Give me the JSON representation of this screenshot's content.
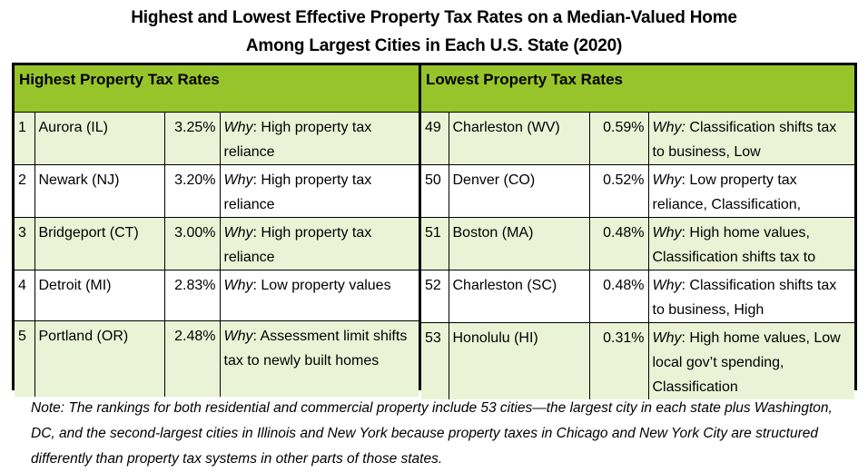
{
  "title": {
    "line1": "Highest and Lowest Effective Property Tax Rates on a Median-Valued Home",
    "line2": "Among Largest Cities in Each U.S. State (2020)"
  },
  "colors": {
    "header_green": "#97c42a",
    "row_tint": "#ebf3d6"
  },
  "highest": {
    "heading": "Highest Property Tax Rates",
    "rows": [
      {
        "rank": "1",
        "city": "Aurora (IL)",
        "rate": "3.25%",
        "why_label": "Why",
        "reason": ": High property tax reliance"
      },
      {
        "rank": "2",
        "city": "Newark (NJ)",
        "rate": "3.20%",
        "why_label": "Why",
        "reason": ": High property tax reliance"
      },
      {
        "rank": "3",
        "city": "Bridgeport (CT)",
        "rate": "3.00%",
        "why_label": "Why",
        "reason": ": High property tax reliance"
      },
      {
        "rank": "4",
        "city": "Detroit (MI)",
        "rate": "2.83%",
        "why_label": "Why",
        "reason": ": Low property values"
      },
      {
        "rank": "5",
        "city": "Portland (OR)",
        "rate": "2.48%",
        "why_label": "Why",
        "reason": ": Assessment limit shifts tax to newly built homes"
      }
    ]
  },
  "lowest": {
    "heading": "Lowest Property Tax Rates",
    "rows": [
      {
        "rank": "49",
        "city": "Charleston (WV)",
        "rate": "0.59%",
        "why_label": "Why:",
        "reason": " Classification shifts tax to business, Low"
      },
      {
        "rank": "50",
        "city": "Denver (CO)",
        "rate": "0.52%",
        "why_label": "Why",
        "reason": ": Low property tax reliance, Classification,"
      },
      {
        "rank": "51",
        "city": "Boston (MA)",
        "rate": "0.48%",
        "why_label": "Why",
        "reason": ": High home values, Classification shifts tax to"
      },
      {
        "rank": "52",
        "city": "Charleston (SC)",
        "rate": "0.48%",
        "why_label": "Why",
        "reason": ": Classification shifts tax to business, High"
      },
      {
        "rank": "53",
        "city": "Honolulu (HI)",
        "rate": "0.31%",
        "why_label": "Why",
        "reason": ": High home values, Low local gov’t spending, Classification"
      }
    ]
  },
  "note": "Note: The rankings for both residential and commercial property include 53 cities—the largest city in each state plus Washington, DC, and the second-largest cities in Illinois and New York because property taxes in Chicago and New York City are structured differently than property tax systems in other parts of those states."
}
